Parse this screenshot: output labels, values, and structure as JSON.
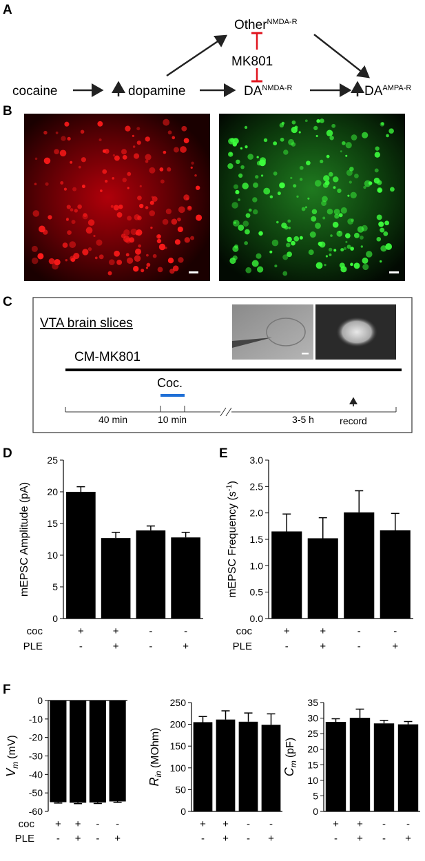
{
  "panel_labels": [
    "A",
    "B",
    "C",
    "D",
    "E",
    "F"
  ],
  "diagram": {
    "nodes": [
      {
        "label": "cocaine"
      },
      {
        "label": "dopamine"
      },
      {
        "label": "Other",
        "sup": "NMDA-R"
      },
      {
        "label": "MK801"
      },
      {
        "label": "DA",
        "sup": "NMDA-R"
      },
      {
        "label": "DA",
        "sup": "AMPA-R"
      }
    ]
  },
  "timeline": {
    "title": "VTA brain slices",
    "drug": "CM-MK801",
    "treatment": "Coc.",
    "intervals": [
      "40 min",
      "10 min",
      "3-5 h"
    ],
    "record": "record"
  },
  "chart_data": [
    {
      "type": "bar",
      "y_label": "mEPSC Amplitude (pA)",
      "categories": [
        null,
        null,
        null,
        null
      ],
      "values": [
        20,
        12.7,
        13.9,
        12.8
      ],
      "errors": [
        0.8,
        0.9,
        0.7,
        0.8
      ],
      "color": "#000000",
      "ylim": [
        0,
        25
      ],
      "yticks": [
        0,
        5,
        10,
        15,
        20,
        25
      ],
      "conditions": [
        {
          "name": "coc",
          "signs": [
            "+",
            "+",
            "-",
            "-"
          ]
        },
        {
          "name": "PLE",
          "signs": [
            "-",
            "+",
            "-",
            "+"
          ]
        }
      ]
    },
    {
      "type": "bar",
      "y_label": "mEPSC Frequency (s",
      "y_label_sup": "-1",
      "y_label_after": ")",
      "categories": [
        null,
        null,
        null,
        null
      ],
      "values": [
        1.65,
        1.52,
        2.01,
        1.67
      ],
      "errors": [
        0.33,
        0.39,
        0.41,
        0.32
      ],
      "color": "#000000",
      "ylim": [
        0,
        3
      ],
      "yticks": [
        {
          "value": 0,
          "label": "0.0"
        },
        {
          "value": 0.5,
          "label": "0.5"
        },
        {
          "value": 1,
          "label": "1.0"
        },
        {
          "value": 1.5,
          "label": "1.5"
        },
        {
          "value": 2,
          "label": "2.0"
        },
        {
          "value": 2.5,
          "label": "2.5"
        },
        {
          "value": 3,
          "label": "3.0"
        }
      ],
      "conditions": [
        {
          "name": "coc",
          "signs": [
            "+",
            "+",
            "-",
            "-"
          ]
        },
        {
          "name": "PLE",
          "signs": [
            "-",
            "+",
            "-",
            "+"
          ]
        }
      ]
    },
    {
      "type": "bar",
      "y_label_symbol": "V",
      "y_label_sub": "m",
      "y_label": "(mV)",
      "categories": [
        null,
        null,
        null,
        null
      ],
      "values": [
        -55,
        -55.3,
        -55.2,
        -54.6
      ],
      "errors": [
        0.5,
        0.5,
        0.5,
        0.5
      ],
      "color": "#000000",
      "ylim": [
        -60,
        0
      ],
      "yticks": [
        0,
        -10,
        -20,
        -30,
        -40,
        -50,
        -60
      ],
      "conditions": [
        {
          "name": "coc",
          "signs": [
            "+",
            "+",
            "-",
            "-"
          ]
        },
        {
          "name": "PLE",
          "signs": [
            "-",
            "+",
            "-",
            "+"
          ]
        }
      ]
    },
    {
      "type": "bar",
      "y_label_symbol": "R",
      "y_label_sub": "in",
      "y_label": "(MOhm)",
      "categories": [
        null,
        null,
        null,
        null
      ],
      "values": [
        205,
        211,
        206,
        199
      ],
      "errors": [
        13,
        20,
        20,
        25
      ],
      "color": "#000000",
      "ylim": [
        0,
        250
      ],
      "yticks": [
        0,
        50,
        100,
        150,
        200,
        250
      ],
      "conditions": [
        {
          "signs": [
            "+",
            "+",
            "-",
            "-"
          ]
        },
        {
          "signs": [
            "-",
            "+",
            "-",
            "+"
          ]
        }
      ]
    },
    {
      "type": "bar",
      "y_label_symbol": "C",
      "y_label_sub": "m",
      "y_label": "(pF)",
      "categories": [
        null,
        null,
        null,
        null
      ],
      "values": [
        28.8,
        30.1,
        28.3,
        28
      ],
      "errors": [
        1,
        2.8,
        1,
        0.9
      ],
      "color": "#000000",
      "ylim": [
        0,
        35
      ],
      "yticks": [
        0,
        5,
        10,
        15,
        20,
        25,
        30,
        35
      ],
      "conditions": [
        {
          "signs": [
            "+",
            "+",
            "-",
            "-"
          ]
        },
        {
          "signs": [
            "-",
            "+",
            "-",
            "+"
          ]
        }
      ]
    }
  ]
}
